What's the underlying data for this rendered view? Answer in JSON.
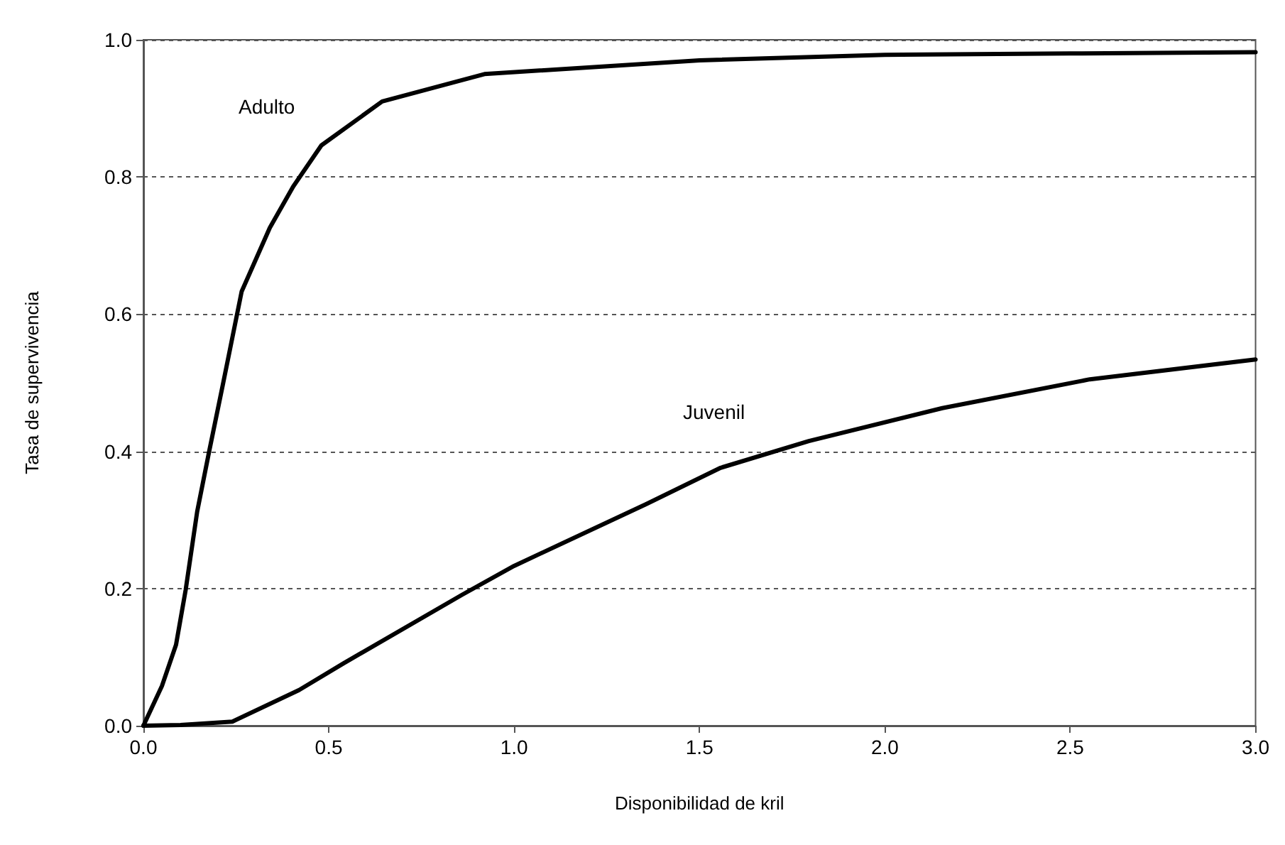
{
  "chart_data": {
    "type": "line",
    "xlabel": "Disponibilidad de kril",
    "ylabel": "Tasa de supervivencia",
    "series": [
      {
        "name": "Adulto",
        "color": "#000000",
        "x": [
          0,
          0.05,
          0.088,
          0.114,
          0.145,
          0.177,
          0.215,
          0.265,
          0.341,
          0.404,
          0.48,
          0.644,
          0.92,
          1.5,
          2.0,
          2.5,
          3.0
        ],
        "values": [
          0,
          0.058,
          0.118,
          0.198,
          0.312,
          0.399,
          0.499,
          0.633,
          0.726,
          0.786,
          0.846,
          0.91,
          0.95,
          0.97,
          0.978,
          0.98,
          0.982
        ]
      },
      {
        "name": "Juvenil",
        "color": "#000000",
        "x": [
          0,
          0.1,
          0.24,
          0.42,
          0.54,
          0.86,
          1.0,
          1.356,
          1.557,
          1.795,
          2.155,
          2.553,
          3.0
        ],
        "values": [
          0,
          0.001,
          0.006,
          0.052,
          0.091,
          0.191,
          0.233,
          0.323,
          0.376,
          0.415,
          0.463,
          0.505,
          0.534
        ]
      }
    ],
    "xlim": [
      0,
      3
    ],
    "xticks": [
      {
        "value": 0,
        "label": "0.0"
      },
      0.5,
      {
        "value": 1,
        "label": "1.0"
      },
      1.5,
      {
        "value": 2,
        "label": "2.0"
      },
      2.5,
      {
        "value": 3,
        "label": "3.0"
      }
    ],
    "ylim": [
      0,
      1
    ],
    "yticks": [
      {
        "value": 0,
        "label": "0.0"
      },
      0.2,
      0.4,
      0.6,
      0.8,
      {
        "value": 1,
        "label": "1.0"
      }
    ],
    "grid": "y",
    "marker": "none",
    "line_style": "solid",
    "legend": false
  }
}
